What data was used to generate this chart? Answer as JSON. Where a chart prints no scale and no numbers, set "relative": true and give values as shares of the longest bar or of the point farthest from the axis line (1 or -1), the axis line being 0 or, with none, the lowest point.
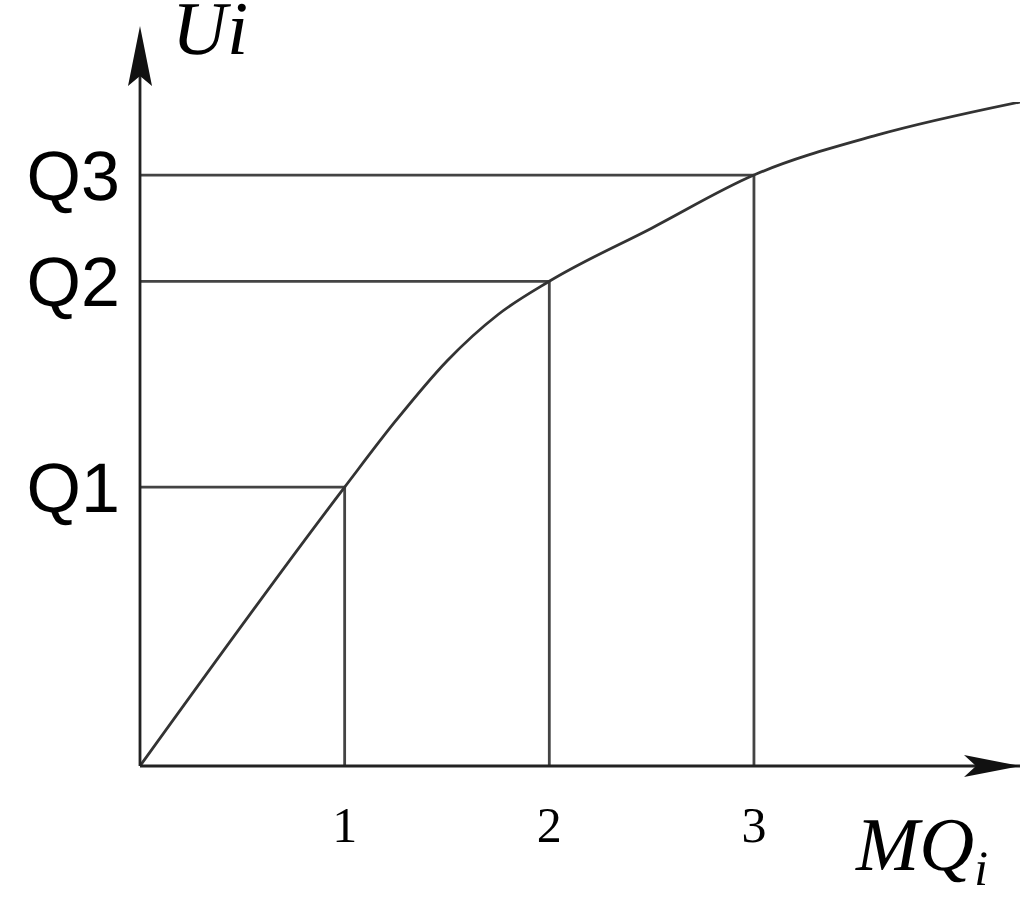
{
  "chart_data": {
    "type": "line",
    "xlabel": "MQ$_{i}$",
    "ylabel": "Ui",
    "relative": true,
    "series": [
      {
        "color": "#333333",
        "x": [
          0,
          1,
          1.25,
          1.5,
          1.75,
          2,
          2.5,
          3,
          3.6,
          4.3
        ],
        "values": [
          0,
          0.42,
          0.52,
          0.61,
          0.68,
          0.73,
          0.81,
          0.89,
          0.95,
          1
        ]
      }
    ],
    "xlim": [
      0,
      4.3
    ],
    "xticks": [
      1,
      2,
      3
    ],
    "ref_lines": [
      {
        "axis": "y",
        "value": 0.42,
        "label": "Q1",
        "color": "#444444"
      },
      {
        "axis": "y",
        "value": 0.73,
        "label": "Q2",
        "color": "#444444"
      },
      {
        "axis": "y",
        "value": 0.89,
        "label": "Q3",
        "color": "#444444"
      },
      {
        "axis": "x",
        "value": 1,
        "color": "#444444"
      },
      {
        "axis": "x",
        "value": 2,
        "color": "#444444"
      },
      {
        "axis": "x",
        "value": 3,
        "color": "#444444"
      }
    ],
    "line_style": "solid"
  }
}
